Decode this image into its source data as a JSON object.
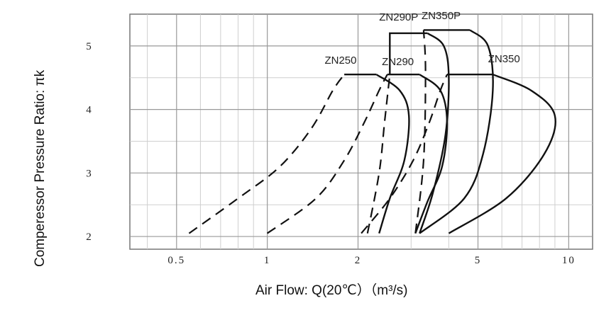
{
  "chart_data": {
    "type": "line",
    "xscale": "log",
    "xlabel": "Air Flow: Q(20℃）（m³/s)",
    "ylabel": "Comperessor Pressure Ratio: πk",
    "xlim": [
      0.35,
      12
    ],
    "ylim": [
      1.8,
      5.5
    ],
    "xticks": [
      {
        "value": 0.5,
        "label": "0.5"
      },
      {
        "value": 1,
        "label": "1"
      },
      {
        "value": 2,
        "label": "2"
      },
      {
        "value": 5,
        "label": "5"
      },
      {
        "value": 10,
        "label": "10"
      }
    ],
    "yticks": [
      {
        "value": 2,
        "label": "2"
      },
      {
        "value": 3,
        "label": "3"
      },
      {
        "value": 4,
        "label": "4"
      },
      {
        "value": 5,
        "label": "5"
      }
    ],
    "grid": true,
    "series": [
      {
        "name": "ZN250",
        "surge": [
          [
            0.55,
            2.05
          ],
          [
            0.8,
            2.6
          ],
          [
            1.1,
            3.1
          ],
          [
            1.4,
            3.7
          ],
          [
            1.65,
            4.3
          ],
          [
            1.8,
            4.55
          ]
        ],
        "top": [
          [
            1.8,
            4.55
          ],
          [
            2.3,
            4.55
          ]
        ],
        "choke": [
          [
            2.3,
            4.55
          ],
          [
            2.75,
            4.3
          ],
          [
            2.95,
            3.9
          ],
          [
            2.85,
            3.2
          ],
          [
            2.55,
            2.6
          ],
          [
            2.35,
            2.05
          ]
        ]
      },
      {
        "name": "ZN290",
        "surge": [
          [
            1.0,
            2.05
          ],
          [
            1.45,
            2.6
          ],
          [
            1.8,
            3.2
          ],
          [
            2.1,
            3.8
          ],
          [
            2.35,
            4.3
          ],
          [
            2.5,
            4.55
          ]
        ],
        "top": [
          [
            2.5,
            4.55
          ],
          [
            3.2,
            4.55
          ]
        ],
        "choke": [
          [
            3.2,
            4.55
          ],
          [
            3.75,
            4.3
          ],
          [
            3.95,
            3.8
          ],
          [
            3.8,
            3.1
          ],
          [
            3.4,
            2.55
          ],
          [
            3.1,
            2.05
          ]
        ]
      },
      {
        "name": "ZN290P",
        "surge": [
          [
            2.15,
            2.05
          ],
          [
            2.35,
            3.0
          ],
          [
            2.45,
            3.8
          ],
          [
            2.55,
            4.55
          ]
        ],
        "top": [
          [
            2.55,
            4.55
          ],
          [
            2.55,
            5.2
          ],
          [
            3.4,
            5.2
          ]
        ],
        "choke": [
          [
            3.4,
            5.2
          ],
          [
            3.85,
            5.0
          ],
          [
            4.0,
            4.5
          ],
          [
            3.9,
            3.6
          ],
          [
            3.55,
            2.7
          ],
          [
            3.2,
            2.05
          ]
        ]
      },
      {
        "name": "ZN350",
        "surge": [
          [
            2.05,
            2.05
          ],
          [
            2.55,
            2.6
          ],
          [
            3.05,
            3.2
          ],
          [
            3.45,
            3.8
          ],
          [
            3.75,
            4.3
          ],
          [
            3.95,
            4.55
          ]
        ],
        "top": [
          [
            3.95,
            4.55
          ],
          [
            5.6,
            4.55
          ]
        ],
        "choke": [
          [
            5.6,
            4.55
          ],
          [
            7.5,
            4.3
          ],
          [
            9.0,
            3.9
          ],
          [
            8.3,
            3.3
          ],
          [
            6.2,
            2.6
          ],
          [
            4.0,
            2.05
          ]
        ]
      },
      {
        "name": "ZN350P",
        "surge": [
          [
            3.1,
            2.05
          ],
          [
            3.3,
            3.2
          ],
          [
            3.35,
            4.6
          ],
          [
            3.3,
            5.25
          ]
        ],
        "top": [
          [
            3.3,
            5.25
          ],
          [
            4.7,
            5.25
          ]
        ],
        "choke": [
          [
            4.7,
            5.25
          ],
          [
            5.4,
            5.0
          ],
          [
            5.6,
            4.3
          ],
          [
            5.2,
            3.3
          ],
          [
            4.5,
            2.6
          ],
          [
            3.2,
            2.05
          ]
        ]
      }
    ],
    "annotations": [
      {
        "text": "ZN250",
        "x": 1.55,
        "y": 4.72
      },
      {
        "text": "ZN290",
        "x": 2.4,
        "y": 4.7
      },
      {
        "text": "ZN290P",
        "x": 2.35,
        "y": 5.4
      },
      {
        "text": "ZN350P",
        "x": 3.25,
        "y": 5.42
      },
      {
        "text": "ZN350",
        "x": 5.4,
        "y": 4.74
      }
    ]
  }
}
